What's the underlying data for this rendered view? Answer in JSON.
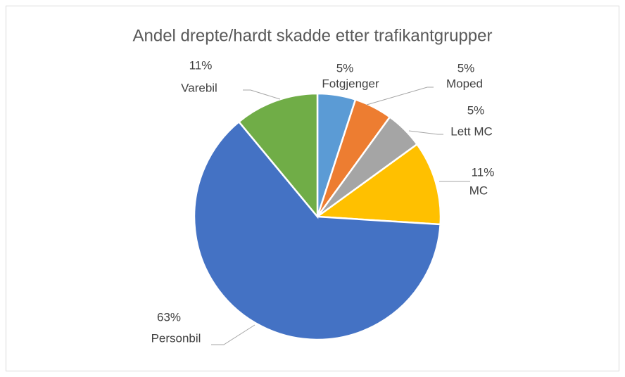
{
  "chart_data": {
    "type": "pie",
    "title": "Andel drepte/hardt skadde etter trafikantgrupper",
    "categories": [
      "Fotgjenger",
      "Moped",
      "Lett MC",
      "MC",
      "Personbil",
      "Varebil"
    ],
    "values": [
      5,
      5,
      5,
      11,
      63,
      11
    ],
    "value_labels": [
      "5%",
      "5%",
      "5%",
      "11%",
      "63%",
      "11%"
    ],
    "colors": [
      "#5b9bd5",
      "#ed7d31",
      "#a5a5a5",
      "#ffc000",
      "#4472c4",
      "#70ad47"
    ]
  }
}
